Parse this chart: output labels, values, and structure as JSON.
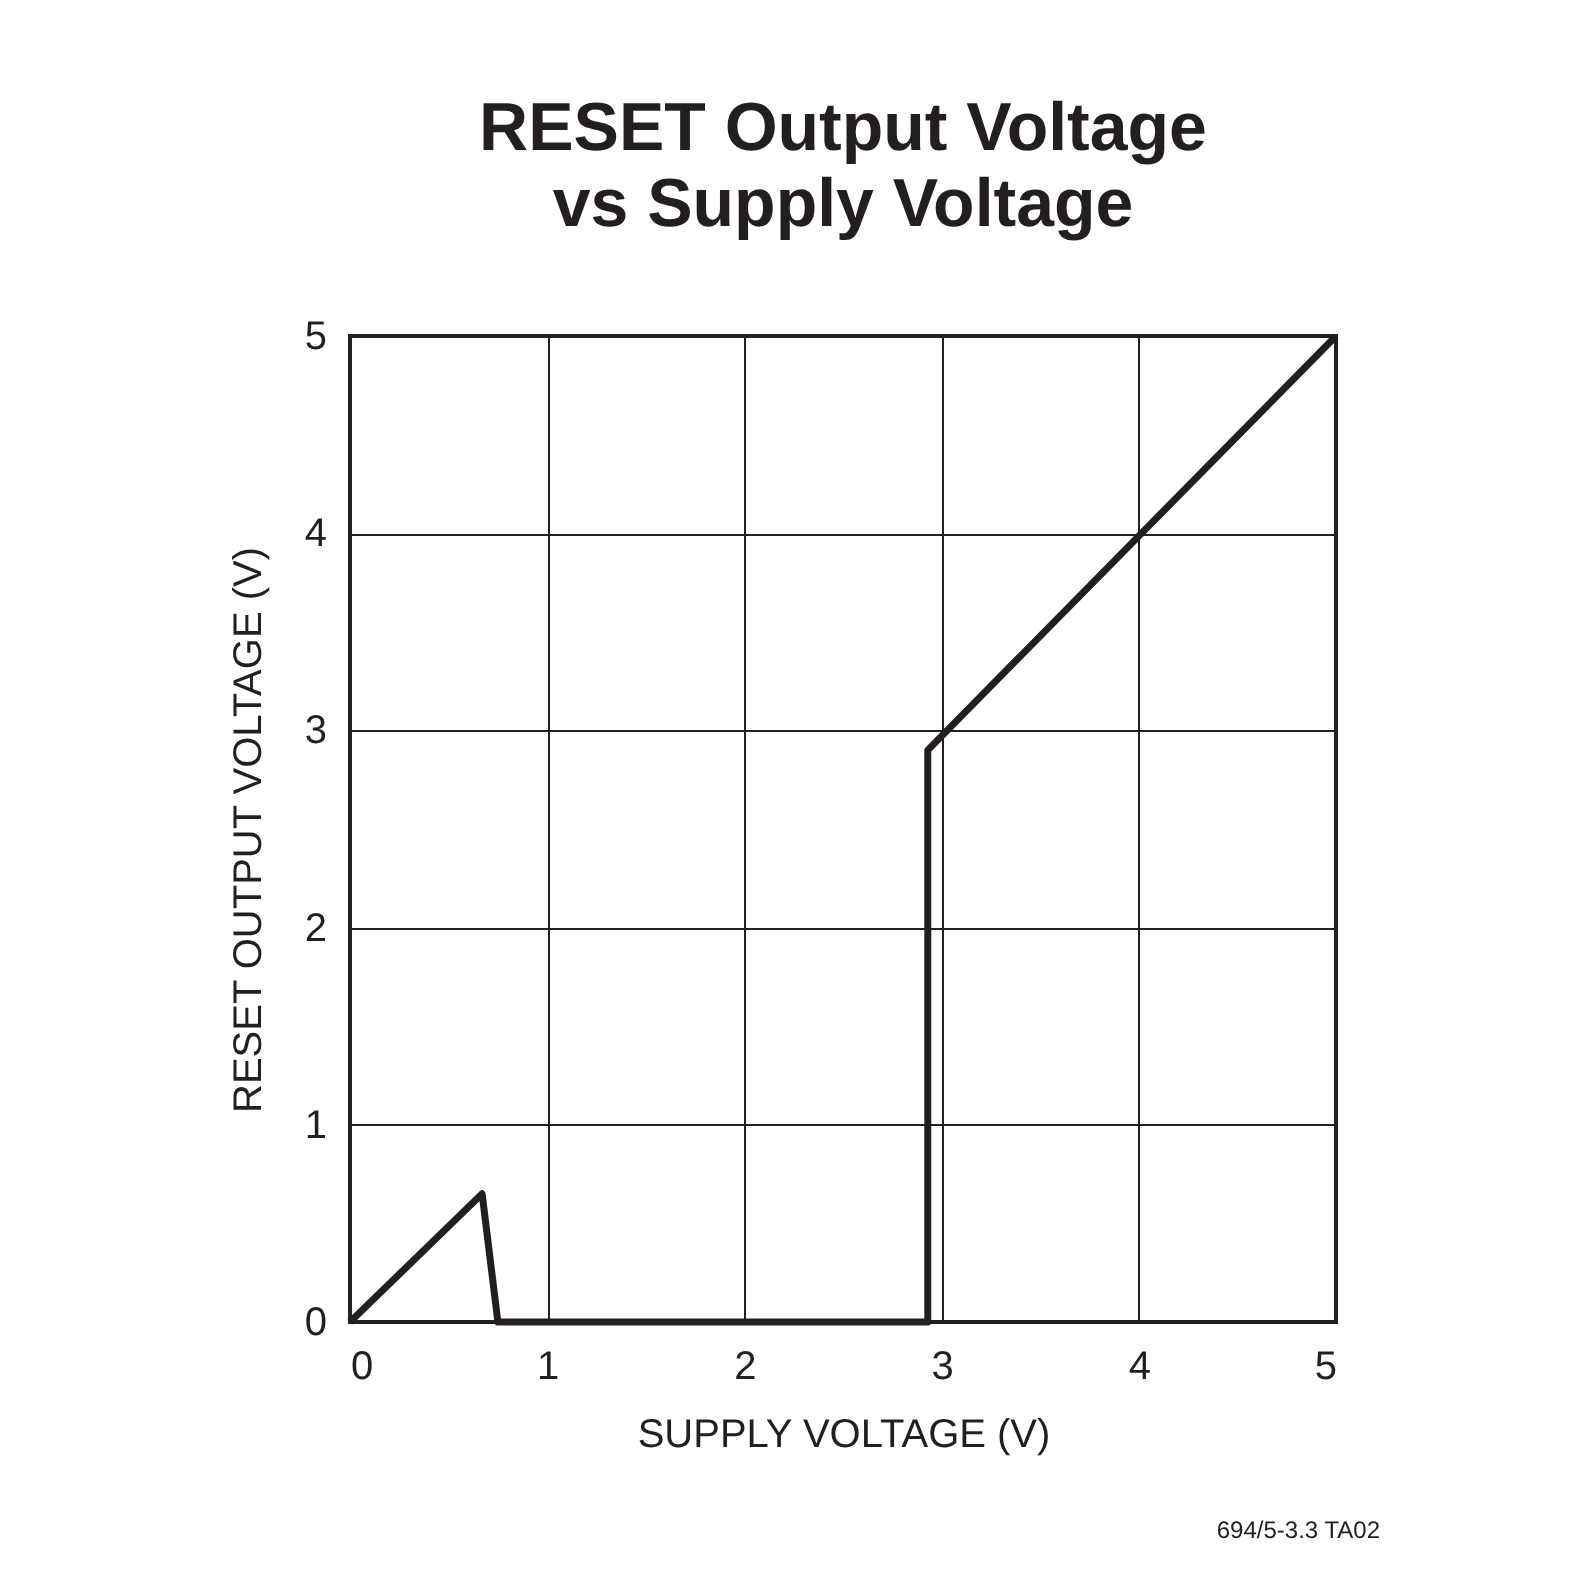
{
  "chart_data": {
    "type": "line",
    "title": "RESET Output Voltage",
    "subtitle": "vs Supply Voltage",
    "xlabel": "SUPPLY VOLTAGE (V)",
    "ylabel": "RESET OUTPUT VOLTAGE (V)",
    "series": [
      {
        "color": "#231f20",
        "x": [
          0,
          0.67,
          0.75,
          2.93,
          2.93,
          5
        ],
        "values": [
          0,
          0.65,
          0,
          0,
          2.9,
          5
        ]
      }
    ],
    "xlim": [
      0,
      5
    ],
    "ylim": [
      0,
      5
    ],
    "xticks": [
      0,
      1,
      2,
      3,
      4,
      5
    ],
    "yticks": [
      0,
      1,
      2,
      3,
      4,
      5
    ],
    "grid": true,
    "legend": false,
    "marker": "none",
    "line_style": "solid",
    "annotations": [
      "694/5-3.3 TA02"
    ]
  }
}
